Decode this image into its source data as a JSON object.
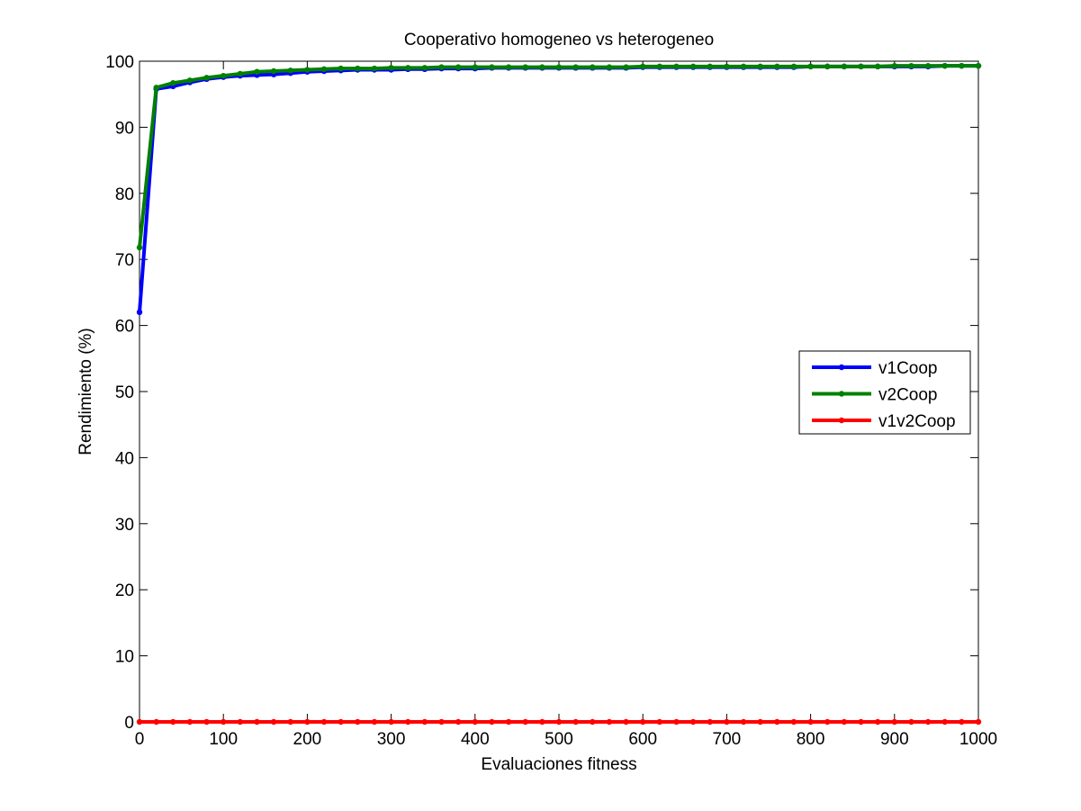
{
  "chart_data": {
    "type": "line",
    "title": "Cooperativo homogeneo vs heterogeneo",
    "xlabel": "Evaluaciones fitness",
    "ylabel": "Rendimiento (%)",
    "xlim": [
      0,
      1000
    ],
    "ylim": [
      0,
      100
    ],
    "xticks": [
      0,
      100,
      200,
      300,
      400,
      500,
      600,
      700,
      800,
      900,
      1000
    ],
    "yticks": [
      0,
      10,
      20,
      30,
      40,
      50,
      60,
      70,
      80,
      90,
      100
    ],
    "grid": false,
    "legend_position": "right",
    "x": [
      0,
      20,
      40,
      60,
      80,
      100,
      120,
      140,
      160,
      180,
      200,
      220,
      240,
      260,
      280,
      300,
      320,
      340,
      360,
      380,
      400,
      420,
      440,
      460,
      480,
      500,
      520,
      540,
      560,
      580,
      600,
      620,
      640,
      660,
      680,
      700,
      720,
      740,
      760,
      780,
      800,
      820,
      840,
      860,
      880,
      900,
      920,
      940,
      960,
      980,
      1000
    ],
    "series": [
      {
        "name": "v1Coop",
        "color": "#0000ff",
        "values": [
          62.0,
          95.8,
          96.2,
          96.8,
          97.3,
          97.6,
          97.8,
          97.9,
          98.0,
          98.2,
          98.4,
          98.5,
          98.6,
          98.7,
          98.7,
          98.7,
          98.8,
          98.8,
          98.9,
          98.9,
          98.9,
          99.0,
          99.0,
          99.0,
          99.0,
          99.0,
          99.0,
          99.0,
          99.0,
          99.0,
          99.1,
          99.1,
          99.1,
          99.1,
          99.1,
          99.1,
          99.1,
          99.1,
          99.1,
          99.1,
          99.2,
          99.2,
          99.2,
          99.2,
          99.2,
          99.2,
          99.2,
          99.2,
          99.3,
          99.3,
          99.3
        ]
      },
      {
        "name": "v2Coop",
        "color": "#008000",
        "values": [
          71.8,
          96.0,
          96.7,
          97.1,
          97.5,
          97.8,
          98.1,
          98.4,
          98.5,
          98.6,
          98.7,
          98.8,
          98.9,
          98.9,
          98.9,
          99.0,
          99.0,
          99.0,
          99.1,
          99.1,
          99.1,
          99.1,
          99.1,
          99.1,
          99.1,
          99.1,
          99.1,
          99.1,
          99.1,
          99.1,
          99.2,
          99.2,
          99.2,
          99.2,
          99.2,
          99.2,
          99.2,
          99.2,
          99.2,
          99.2,
          99.2,
          99.2,
          99.2,
          99.2,
          99.2,
          99.3,
          99.3,
          99.3,
          99.3,
          99.3,
          99.3
        ]
      },
      {
        "name": "v1v2Coop",
        "color": "#ff0000",
        "values": [
          0,
          0,
          0,
          0,
          0,
          0,
          0,
          0,
          0,
          0,
          0,
          0,
          0,
          0,
          0,
          0,
          0,
          0,
          0,
          0,
          0,
          0,
          0,
          0,
          0,
          0,
          0,
          0,
          0,
          0,
          0,
          0,
          0,
          0,
          0,
          0,
          0,
          0,
          0,
          0,
          0,
          0,
          0,
          0,
          0,
          0,
          0,
          0,
          0,
          0,
          0
        ]
      }
    ]
  }
}
